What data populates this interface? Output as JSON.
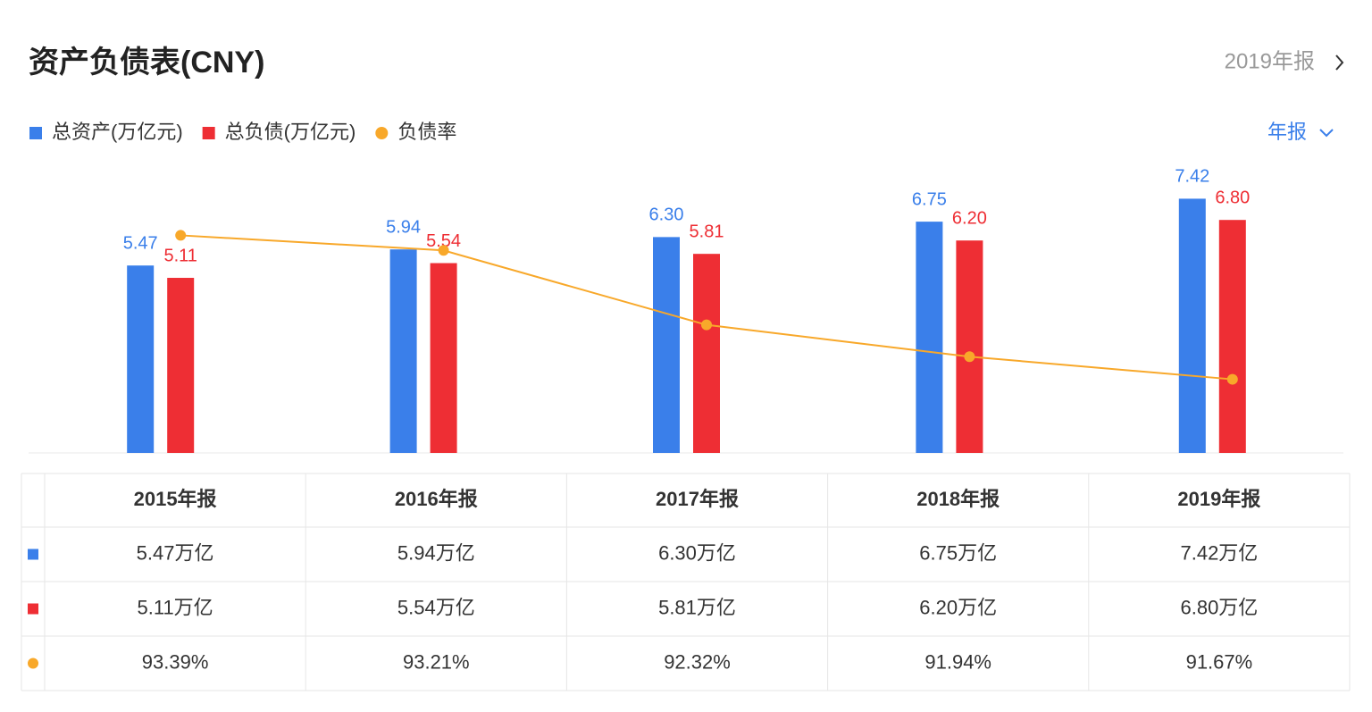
{
  "header": {
    "title": "资产负债表(CNY)",
    "report": "2019年报",
    "period_selector": "年报"
  },
  "chart_data": {
    "type": "bar",
    "categories": [
      "2015年报",
      "2016年报",
      "2017年报",
      "2018年报",
      "2019年报"
    ],
    "series": [
      {
        "name": "总资产(万亿元)",
        "color": "#3a7fea",
        "values": [
          5.47,
          5.94,
          6.3,
          6.75,
          7.42
        ],
        "value_labels": [
          "5.47",
          "5.94",
          "6.30",
          "6.75",
          "7.42"
        ]
      },
      {
        "name": "总负债(万亿元)",
        "color": "#ee2e34",
        "values": [
          5.11,
          5.54,
          5.81,
          6.2,
          6.8
        ],
        "value_labels": [
          "5.11",
          "5.54",
          "5.81",
          "6.20",
          "6.80"
        ]
      },
      {
        "name": "负债率",
        "type": "line",
        "axis": "y2",
        "color": "#f8a82a",
        "values": [
          93.39,
          93.21,
          92.32,
          91.94,
          91.67
        ]
      }
    ],
    "ylim": [
      0,
      8.5
    ],
    "y2lim": [
      90.79,
      94.27
    ],
    "legend": "top-left"
  },
  "table": {
    "rows": [
      [
        "5.47万亿",
        "5.94万亿",
        "6.30万亿",
        "6.75万亿",
        "7.42万亿"
      ],
      [
        "5.11万亿",
        "5.54万亿",
        "5.81万亿",
        "6.20万亿",
        "6.80万亿"
      ],
      [
        "93.39%",
        "93.21%",
        "92.32%",
        "91.94%",
        "91.67%"
      ]
    ]
  }
}
